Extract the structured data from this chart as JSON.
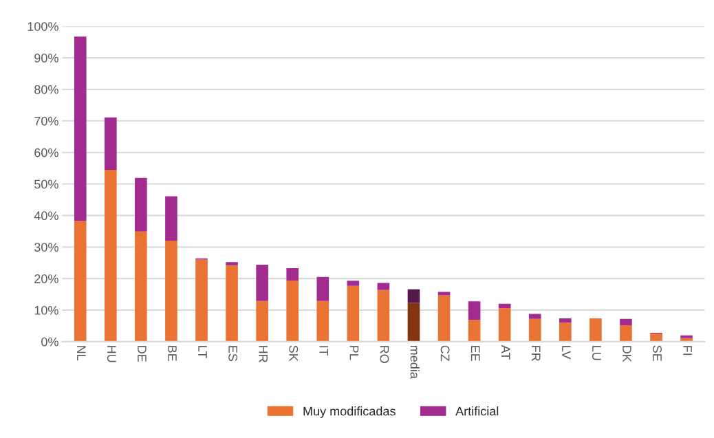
{
  "chart_data": {
    "type": "bar",
    "stacked": true,
    "categories": [
      "NL",
      "HU",
      "DE",
      "BE",
      "LT",
      "ES",
      "HR",
      "SK",
      "IT",
      "PL",
      "RO",
      "media",
      "CZ",
      "EE",
      "AT",
      "FR",
      "LV",
      "LU",
      "DK",
      "SE",
      "FI"
    ],
    "series": [
      {
        "name": "Muy modificadas",
        "color": "#ea7233",
        "colors": [
          "#ea7233",
          "#ea7233",
          "#ea7233",
          "#ea7233",
          "#ea7233",
          "#ea7233",
          "#ea7233",
          "#ea7233",
          "#ea7233",
          "#ea7233",
          "#ea7233",
          "#833510",
          "#ea7233",
          "#ea7233",
          "#ea7233",
          "#ea7233",
          "#ea7233",
          "#ea7233",
          "#ea7233",
          "#ea7233",
          "#ea7233"
        ],
        "values": [
          38.3,
          54.5,
          34.9,
          32.0,
          26.0,
          24.2,
          12.9,
          19.4,
          12.9,
          17.7,
          16.4,
          12.3,
          14.7,
          6.9,
          10.6,
          7.2,
          6.0,
          7.4,
          5.2,
          2.6,
          1.1
        ]
      },
      {
        "name": "Artificial",
        "color": "#a12b8f",
        "colors": [
          "#a12b8f",
          "#a12b8f",
          "#a12b8f",
          "#a12b8f",
          "#a12b8f",
          "#a12b8f",
          "#a12b8f",
          "#a12b8f",
          "#a12b8f",
          "#a12b8f",
          "#a12b8f",
          "#54184d",
          "#a12b8f",
          "#a12b8f",
          "#a12b8f",
          "#a12b8f",
          "#a12b8f",
          "#a12b8f",
          "#a12b8f",
          "#a12b8f",
          "#a12b8f"
        ],
        "values": [
          58.4,
          16.6,
          17.0,
          14.1,
          0.4,
          1.0,
          11.5,
          3.9,
          7.6,
          1.6,
          2.2,
          4.3,
          1.1,
          5.9,
          1.4,
          1.6,
          1.4,
          null,
          2.0,
          0.2,
          0.9
        ]
      }
    ],
    "ylim": [
      0,
      100
    ],
    "yticks": [
      {
        "value": 0,
        "label": "0%"
      },
      {
        "value": 10,
        "label": "10%"
      },
      {
        "value": 20,
        "label": "20%"
      },
      {
        "value": 30,
        "label": "30%"
      },
      {
        "value": 40,
        "label": "40%"
      },
      {
        "value": 50,
        "label": "50%"
      },
      {
        "value": 60,
        "label": "60%"
      },
      {
        "value": 70,
        "label": "70%"
      },
      {
        "value": 80,
        "label": "80%"
      },
      {
        "value": 90,
        "label": "90%"
      },
      {
        "value": 100,
        "label": "100%"
      }
    ],
    "grid": "y",
    "legend": "bottom"
  }
}
